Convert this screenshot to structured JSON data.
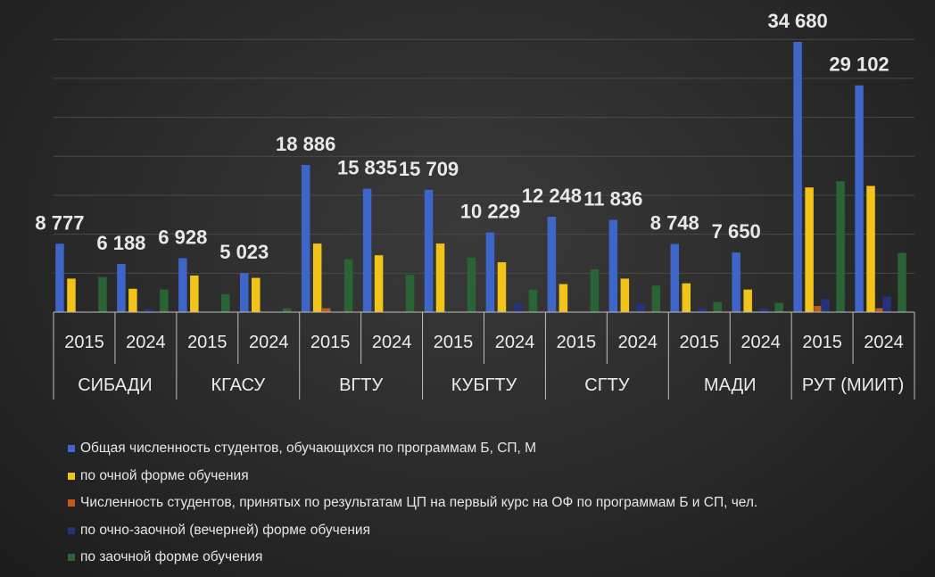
{
  "chart_data": {
    "type": "bar",
    "title": "",
    "xlabel": "",
    "ylabel": "",
    "ylim": [
      0,
      36000
    ],
    "grid": true,
    "legend_position": "bottom",
    "groups": [
      {
        "label": "СИБАДИ",
        "years": [
          "2015",
          "2024"
        ]
      },
      {
        "label": "КГАСУ",
        "years": [
          "2015",
          "2024"
        ]
      },
      {
        "label": "ВГТУ",
        "years": [
          "2015",
          "2024"
        ]
      },
      {
        "label": "КУБГТУ",
        "years": [
          "2015",
          "2024"
        ]
      },
      {
        "label": "СГТУ",
        "years": [
          "2015",
          "2024"
        ]
      },
      {
        "label": "МАДИ",
        "years": [
          "2015",
          "2024"
        ]
      },
      {
        "label": "РУТ (МИИТ)",
        "years": [
          "2015",
          "2024"
        ]
      }
    ],
    "series": [
      {
        "name": "Общая численность студентов, обучающихся по программам Б, СП, М",
        "color": "#3e65c8",
        "values": [
          8777,
          6188,
          6928,
          5023,
          18886,
          15835,
          15709,
          10229,
          12248,
          11836,
          8748,
          7650,
          34680,
          29102
        ]
      },
      {
        "name": "по очной форме обучения",
        "color": "#f2c318",
        "values": [
          4300,
          3000,
          4700,
          4400,
          8800,
          7300,
          8800,
          6400,
          3600,
          4300,
          3700,
          2900,
          16000,
          16200
        ]
      },
      {
        "name": "Численность студентов, принятых по результатам ЦП на первый курс на ОФ по программам Б и СП, чел.",
        "color": "#c05a1e",
        "values": [
          0,
          0,
          0,
          0,
          500,
          0,
          0,
          0,
          0,
          0,
          0,
          0,
          800,
          500
        ]
      },
      {
        "name": "по очно-заочной (вечерней) форме обучения",
        "color": "#26327a",
        "values": [
          0,
          400,
          0,
          0,
          0,
          0,
          0,
          1100,
          0,
          1100,
          500,
          500,
          1700,
          2000
        ]
      },
      {
        "name": "по заочной форме обучения",
        "color": "#2a6434",
        "values": [
          4500,
          2900,
          2300,
          500,
          6800,
          4800,
          7000,
          2900,
          5500,
          3400,
          1300,
          1200,
          16800,
          7600
        ]
      }
    ],
    "data_labels": [
      "8 777",
      "6 188",
      "6 928",
      "5 023",
      "18 886",
      "15 835",
      "15 709",
      "10 229",
      "12 248",
      "11 836",
      "8 748",
      "7 650",
      "34 680",
      "29 102"
    ]
  }
}
